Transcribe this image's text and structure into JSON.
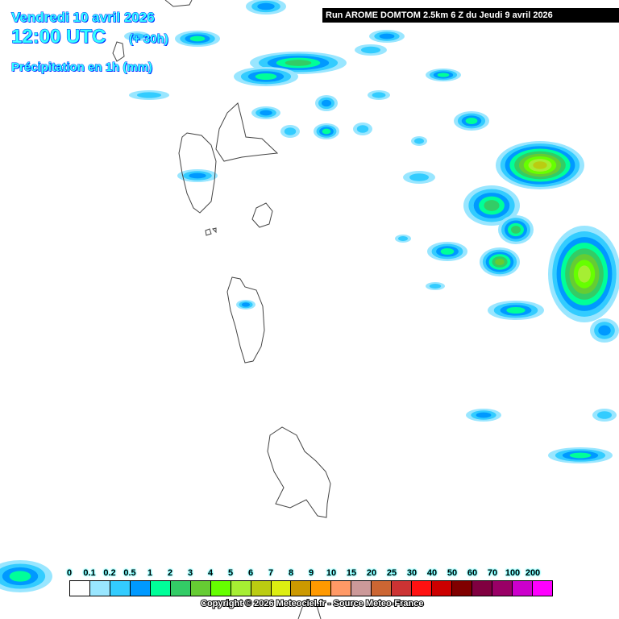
{
  "header": {
    "date": "Vendredi 10 avril 2026",
    "time": "12:00 UTC",
    "lead": "(+ 30h)",
    "variable": "Précipitation en 1h (mm)",
    "run": "Run AROME DOMTOM 2.5km 6 Z du Jeudi 9 avril 2026"
  },
  "legend": {
    "labels": [
      "0",
      "0.1",
      "0.2",
      "0.5",
      "1",
      "2",
      "3",
      "4",
      "5",
      "6",
      "7",
      "8",
      "9",
      "10",
      "15",
      "20",
      "25",
      "30",
      "40",
      "50",
      "60",
      "70",
      "100",
      "200"
    ],
    "colors": [
      "#ffffff",
      "#99e6ff",
      "#33ccff",
      "#0099ff",
      "#00ff99",
      "#33cc66",
      "#66cc33",
      "#66ff00",
      "#a6ee33",
      "#bbcc11",
      "#ddee11",
      "#cc9900",
      "#ff9900",
      "#ff9966",
      "#cc9999",
      "#cc6633",
      "#cc3333",
      "#ff1111",
      "#cc0000",
      "#800000",
      "#800040",
      "#990066",
      "#cc00cc",
      "#ff00ff"
    ]
  },
  "footer": {
    "copyright": "Copyright © 2026 Meteociel.fr - Source Meteo-France"
  }
}
